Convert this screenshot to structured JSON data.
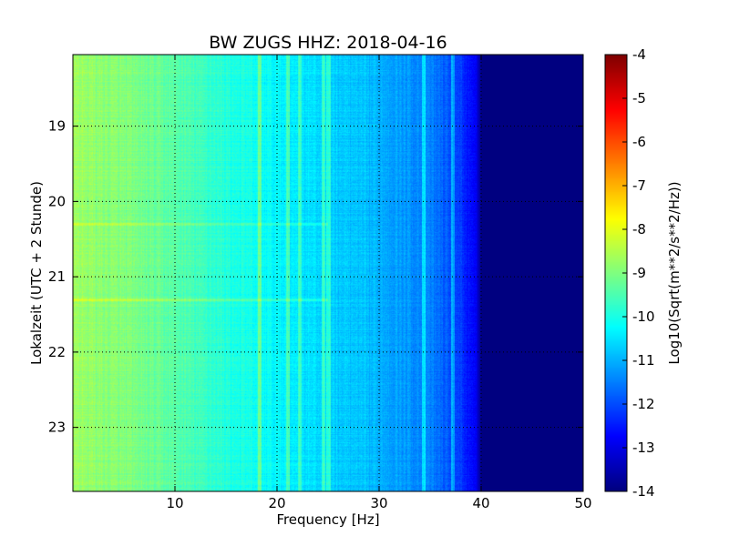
{
  "chart_data": {
    "type": "heatmap",
    "title": "BW ZUGS HHZ: 2018-04-16",
    "xlabel": "Frequency [Hz]",
    "ylabel": "Lokalzeit (UTC + 2 Stunde)",
    "colorbar_label": "Log10(Sqrt(m**2/s**2/Hz))",
    "x_ticks": [
      "10",
      "20",
      "30",
      "40",
      "50"
    ],
    "x_tick_values": [
      10,
      20,
      30,
      40,
      50
    ],
    "xlim": [
      0,
      50
    ],
    "y_ticks": [
      "19",
      "20",
      "21",
      "22",
      "23"
    ],
    "y_tick_values": [
      19,
      20,
      21,
      22,
      23
    ],
    "ylim": [
      18.05,
      23.85
    ],
    "y_inverted": true,
    "colorbar_ticks": [
      "-4",
      "-5",
      "-6",
      "-7",
      "-8",
      "-9",
      "-10",
      "-11",
      "-12",
      "-13",
      "-14"
    ],
    "colorbar_tick_values": [
      -4,
      -5,
      -6,
      -7,
      -8,
      -9,
      -10,
      -11,
      -12,
      -13,
      -14
    ],
    "crange": [
      -14,
      -4
    ],
    "colormap": "jet",
    "grid": true,
    "spectrum_profile": {
      "frequency": [
        0,
        5,
        10,
        15,
        20,
        25,
        30,
        35,
        38,
        39.5,
        40,
        50
      ],
      "level": [
        -8.7,
        -9.0,
        -9.4,
        -9.9,
        -10.3,
        -10.7,
        -11.0,
        -11.5,
        -12.2,
        -13.0,
        -14.0,
        -14.0
      ]
    },
    "bright_frequency_lines": [
      18.3,
      21.0,
      22.2,
      24.5,
      25.0,
      34.3,
      37.2
    ],
    "bright_time_bands": [
      20.3,
      21.3
    ]
  }
}
